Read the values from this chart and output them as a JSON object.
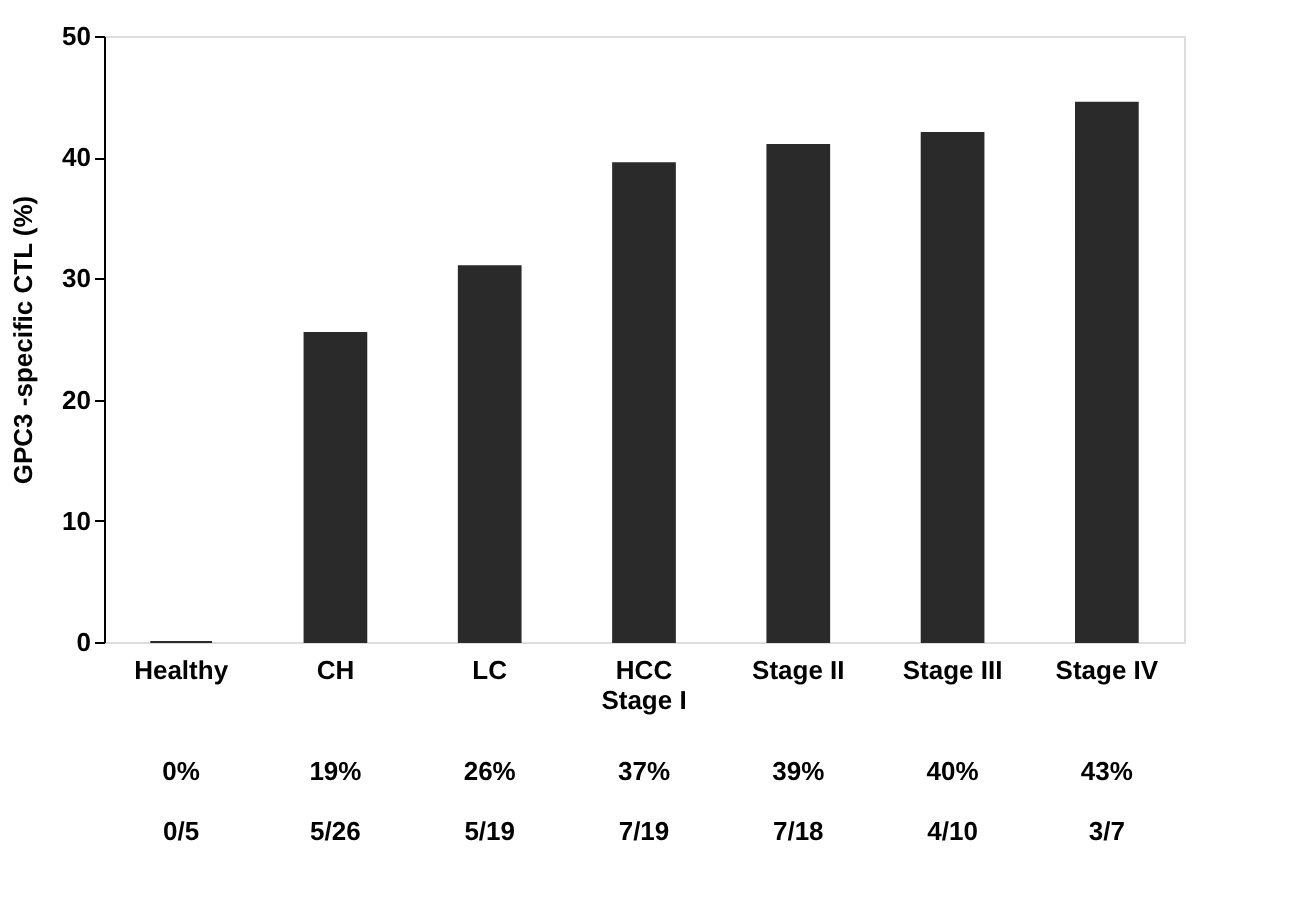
{
  "chart_data": {
    "type": "bar",
    "categories": [
      "Healthy",
      "CH",
      "LC",
      "HCC\nStage I",
      "Stage II",
      "Stage III",
      "Stage IV"
    ],
    "values": [
      0,
      25.5,
      31,
      39.5,
      41,
      42,
      44.5
    ],
    "color": "#2a2a2a",
    "ylabel": "GPC3 -specific CTL (%)",
    "ylim": [
      0,
      50
    ],
    "yticks": [
      0,
      10,
      20,
      30,
      40,
      50
    ],
    "grid": false,
    "annotations": [
      "0%",
      "19%",
      "26%",
      "37%",
      "39%",
      "40%",
      "43%",
      "0/5",
      "5/26",
      "5/19",
      "7/19",
      "7/18",
      "4/10",
      "3/7"
    ]
  }
}
